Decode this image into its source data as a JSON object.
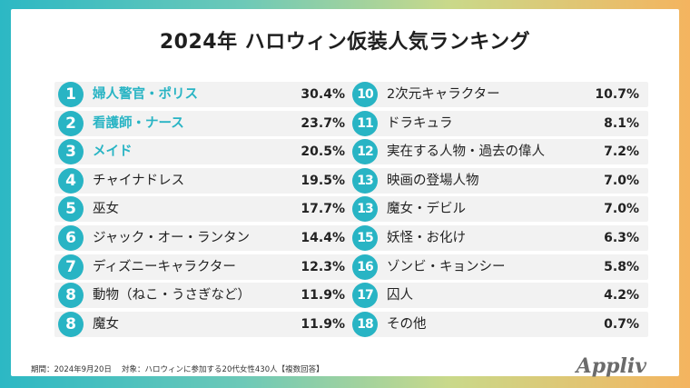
{
  "chart_data": {
    "type": "table",
    "title": "2024年 ハロウィン仮装人気ランキング",
    "rows": [
      {
        "rank": "1",
        "label": "婦人警官・ポリス",
        "value": 30.4,
        "display": "30.4%",
        "highlight": true
      },
      {
        "rank": "2",
        "label": "看護師・ナース",
        "value": 23.7,
        "display": "23.7%",
        "highlight": true
      },
      {
        "rank": "3",
        "label": "メイド",
        "value": 20.5,
        "display": "20.5%",
        "highlight": true
      },
      {
        "rank": "4",
        "label": "チャイナドレス",
        "value": 19.5,
        "display": "19.5%",
        "highlight": false
      },
      {
        "rank": "5",
        "label": "巫女",
        "value": 17.7,
        "display": "17.7%",
        "highlight": false
      },
      {
        "rank": "6",
        "label": "ジャック・オー・ランタン",
        "value": 14.4,
        "display": "14.4%",
        "highlight": false
      },
      {
        "rank": "7",
        "label": "ディズニーキャラクター",
        "value": 12.3,
        "display": "12.3%",
        "highlight": false
      },
      {
        "rank": "8",
        "label": "動物（ねこ・うさぎなど）",
        "value": 11.9,
        "display": "11.9%",
        "highlight": false
      },
      {
        "rank": "8",
        "label": "魔女",
        "value": 11.9,
        "display": "11.9%",
        "highlight": false
      },
      {
        "rank": "10",
        "label": "2次元キャラクター",
        "value": 10.7,
        "display": "10.7%",
        "highlight": false
      },
      {
        "rank": "11",
        "label": "ドラキュラ",
        "value": 8.1,
        "display": "8.1%",
        "highlight": false
      },
      {
        "rank": "12",
        "label": "実在する人物・過去の偉人",
        "value": 7.2,
        "display": "7.2%",
        "highlight": false
      },
      {
        "rank": "13",
        "label": "映画の登場人物",
        "value": 7.0,
        "display": "7.0%",
        "highlight": false
      },
      {
        "rank": "13",
        "label": "魔女・デビル",
        "value": 7.0,
        "display": "7.0%",
        "highlight": false
      },
      {
        "rank": "15",
        "label": "妖怪・お化け",
        "value": 6.3,
        "display": "6.3%",
        "highlight": false
      },
      {
        "rank": "16",
        "label": "ゾンビ・キョンシー",
        "value": 5.8,
        "display": "5.8%",
        "highlight": false
      },
      {
        "rank": "17",
        "label": "囚人",
        "value": 4.2,
        "display": "4.2%",
        "highlight": false
      },
      {
        "rank": "18",
        "label": "その他",
        "value": 0.7,
        "display": "0.7%",
        "highlight": false
      }
    ]
  },
  "footnote": "期間：2024年9月20日　 対象：ハロウィンに参加する20代女性430人【複数回答】",
  "logo": "Appliv",
  "colors": {
    "accent": "#28b4c4",
    "row_bg": "#f2f2f2",
    "gradient_left": "#2cb8c4",
    "gradient_right": "#f4b45f"
  }
}
